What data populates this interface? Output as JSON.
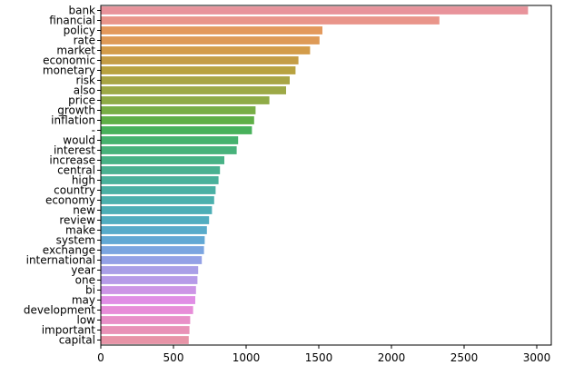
{
  "chart_data": {
    "type": "bar",
    "orientation": "horizontal",
    "categories": [
      "bank",
      "financial",
      "policy",
      "rate",
      "market",
      "economic",
      "monetary",
      "risk",
      "also",
      "price",
      "growth",
      "inflation",
      "-",
      "would",
      "interest",
      "increase",
      "central",
      "high",
      "country",
      "economy",
      "new",
      "review",
      "make",
      "system",
      "exchange",
      "international",
      "year",
      "one",
      "bi",
      "may",
      "development",
      "low",
      "important",
      "capital"
    ],
    "values": [
      2940,
      2330,
      1525,
      1505,
      1440,
      1360,
      1340,
      1300,
      1275,
      1160,
      1065,
      1055,
      1040,
      945,
      935,
      850,
      820,
      810,
      790,
      780,
      765,
      745,
      730,
      715,
      710,
      695,
      670,
      665,
      655,
      650,
      635,
      615,
      610,
      605
    ],
    "colors": [
      "#e8939b",
      "#e9958a",
      "#e3995c",
      "#de9a57",
      "#d39c4a",
      "#c49d46",
      "#b8a240",
      "#a8a545",
      "#9da947",
      "#8fab47",
      "#78ae46",
      "#5faf47",
      "#48b15b",
      "#46b26e",
      "#48b27b",
      "#48b286",
      "#4ab191",
      "#4ab19b",
      "#4bb0a4",
      "#4cb0ad",
      "#4daeb6",
      "#51adc0",
      "#58abca",
      "#62a8d4",
      "#7ba5e0",
      "#93a1e6",
      "#a99fe7",
      "#b69be8",
      "#cc95e6",
      "#e08ee5",
      "#e78dd8",
      "#e890c8",
      "#e892b7",
      "#e794a7"
    ],
    "xlim": [
      0,
      3100
    ],
    "xticks": [
      0,
      500,
      1000,
      1500,
      2000,
      2500,
      3000
    ],
    "title": "",
    "xlabel": "",
    "ylabel": "",
    "grid": false,
    "legend": "none"
  }
}
